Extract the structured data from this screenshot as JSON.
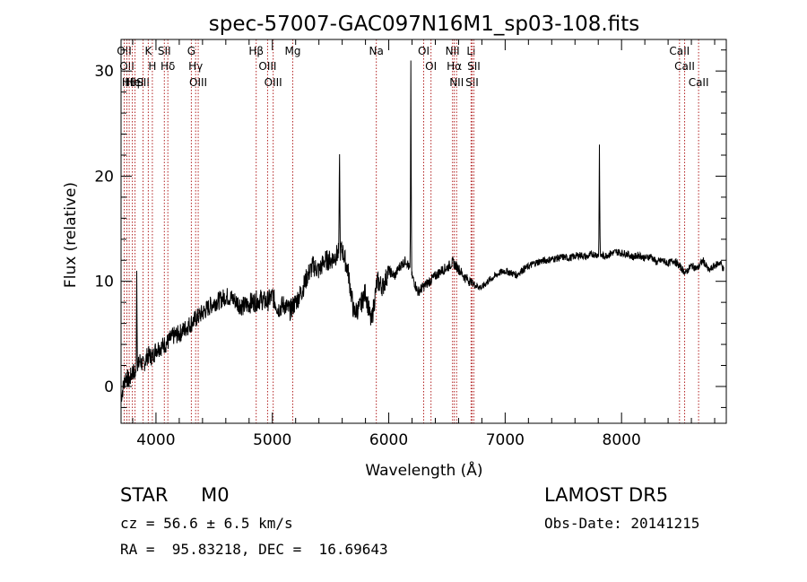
{
  "chart_data": {
    "type": "line",
    "title": "spec-57007-GAC097N16M1_sp03-108.fits",
    "xlabel": "Wavelength (Å)",
    "ylabel": "Flux (relative)",
    "xlim": [
      3700,
      8900
    ],
    "ylim": [
      -3.5,
      33
    ],
    "x_ticks": [
      4000,
      5000,
      6000,
      7000,
      8000
    ],
    "x_tick_labels": [
      "4000",
      "5000",
      "6000",
      "7000",
      "8000"
    ],
    "y_ticks": [
      0,
      10,
      20,
      30
    ],
    "y_tick_labels": [
      "0",
      "10",
      "20",
      "30"
    ],
    "grid": false,
    "colors": {
      "spectrum": "#000000",
      "lines": "#b22222",
      "axes": "#000000"
    },
    "series": [
      {
        "x": [
          3700,
          3740,
          3770,
          3800,
          3830,
          3860,
          3890,
          3930,
          3970,
          4000,
          4050,
          4100,
          4150,
          4200,
          4250,
          4300,
          4350,
          4400,
          4450,
          4500,
          4550,
          4600,
          4650,
          4700,
          4750,
          4800,
          4850,
          4900,
          4950,
          5000,
          5050,
          5100,
          5150,
          5200,
          5250,
          5300,
          5350,
          5400,
          5450,
          5500,
          5550,
          5600,
          5650,
          5700,
          5750,
          5800,
          5850,
          5900,
          5950,
          6000,
          6050,
          6100,
          6150,
          6200,
          6250,
          6300,
          6350,
          6400,
          6450,
          6500,
          6550,
          6600,
          6650,
          6700,
          6750,
          6800,
          6850,
          6900,
          6950,
          7000,
          7050,
          7100,
          7150,
          7200,
          7250,
          7300,
          7350,
          7400,
          7450,
          7500,
          7550,
          7600,
          7650,
          7700,
          7750,
          7800,
          7850,
          7900,
          7950,
          8000,
          8050,
          8100,
          8150,
          8200,
          8250,
          8300,
          8350,
          8400,
          8450,
          8500,
          8550,
          8600,
          8650,
          8700,
          8750,
          8800,
          8850,
          8880
        ],
        "y": [
          -1.0,
          1.0,
          0.5,
          1.5,
          1.0,
          2.5,
          2.0,
          3.0,
          2.8,
          3.6,
          3.8,
          4.2,
          4.8,
          5.0,
          5.5,
          6.0,
          6.5,
          7.0,
          7.5,
          8.0,
          8.2,
          8.6,
          8.4,
          8.0,
          7.6,
          7.9,
          8.1,
          8.3,
          8.0,
          8.6,
          7.4,
          7.8,
          7.2,
          8.0,
          9.0,
          10.5,
          11.5,
          11.0,
          12.0,
          12.0,
          12.5,
          13.0,
          11.0,
          7.0,
          7.5,
          9.0,
          6.0,
          10.0,
          9.5,
          11.0,
          10.5,
          11.5,
          12.0,
          10.5,
          9.0,
          9.5,
          10.0,
          10.5,
          11.0,
          11.3,
          11.8,
          11.2,
          10.4,
          10.0,
          9.6,
          9.4,
          10.0,
          10.4,
          10.8,
          11.0,
          10.8,
          10.6,
          11.1,
          11.4,
          11.7,
          11.9,
          12.0,
          12.1,
          12.2,
          12.3,
          12.2,
          12.4,
          12.5,
          12.3,
          12.6,
          12.5,
          12.4,
          12.6,
          12.8,
          12.7,
          12.6,
          12.3,
          12.5,
          12.2,
          12.4,
          11.8,
          12.0,
          11.7,
          12.0,
          11.4,
          10.8,
          11.5,
          11.2,
          12.0,
          11.0,
          11.5,
          11.8,
          11.0
        ]
      }
    ],
    "spikes": [
      {
        "x": 3835,
        "y": 11.0
      },
      {
        "x": 5577,
        "y": 23.0
      },
      {
        "x": 6190,
        "y": 31.0
      },
      {
        "x": 7810,
        "y": 23.0
      }
    ],
    "line_markers": [
      {
        "x": 3727,
        "label": "OII"
      },
      {
        "x": 3750,
        "label": "OII"
      },
      {
        "x": 3770,
        "label": "Hθ"
      },
      {
        "x": 3797,
        "label": "Hη"
      },
      {
        "x": 3820,
        "label": "HeI"
      },
      {
        "x": 3889,
        "label": "SII"
      },
      {
        "x": 3934,
        "label": "K"
      },
      {
        "x": 3969,
        "label": "H"
      },
      {
        "x": 4072,
        "label": "SII"
      },
      {
        "x": 4102,
        "label": "Hδ"
      },
      {
        "x": 4304,
        "label": "G"
      },
      {
        "x": 4341,
        "label": "Hγ"
      },
      {
        "x": 4363,
        "label": "OIII"
      },
      {
        "x": 4861,
        "label": "Hβ"
      },
      {
        "x": 4959,
        "label": "OIII"
      },
      {
        "x": 5007,
        "label": "OIII"
      },
      {
        "x": 5175,
        "label": "Mg"
      },
      {
        "x": 5893,
        "label": "Na"
      },
      {
        "x": 6300,
        "label": "OI"
      },
      {
        "x": 6363,
        "label": "OI"
      },
      {
        "x": 6548,
        "label": "NII"
      },
      {
        "x": 6563,
        "label": "Hα"
      },
      {
        "x": 6583,
        "label": "NII"
      },
      {
        "x": 6707,
        "label": "Li"
      },
      {
        "x": 6716,
        "label": "SII"
      },
      {
        "x": 6731,
        "label": "SII"
      },
      {
        "x": 8498,
        "label": "CaII"
      },
      {
        "x": 8542,
        "label": "CaII"
      },
      {
        "x": 8662,
        "label": "CaII"
      }
    ]
  },
  "info": {
    "class_label": "STAR",
    "subclass": "M0",
    "survey": "LAMOST DR5",
    "velocity": "cz = 56.6 ± 6.5 km/s",
    "obs_date": "Obs-Date: 20141215",
    "coords": "RA =  95.83218, DEC =  16.69643"
  }
}
